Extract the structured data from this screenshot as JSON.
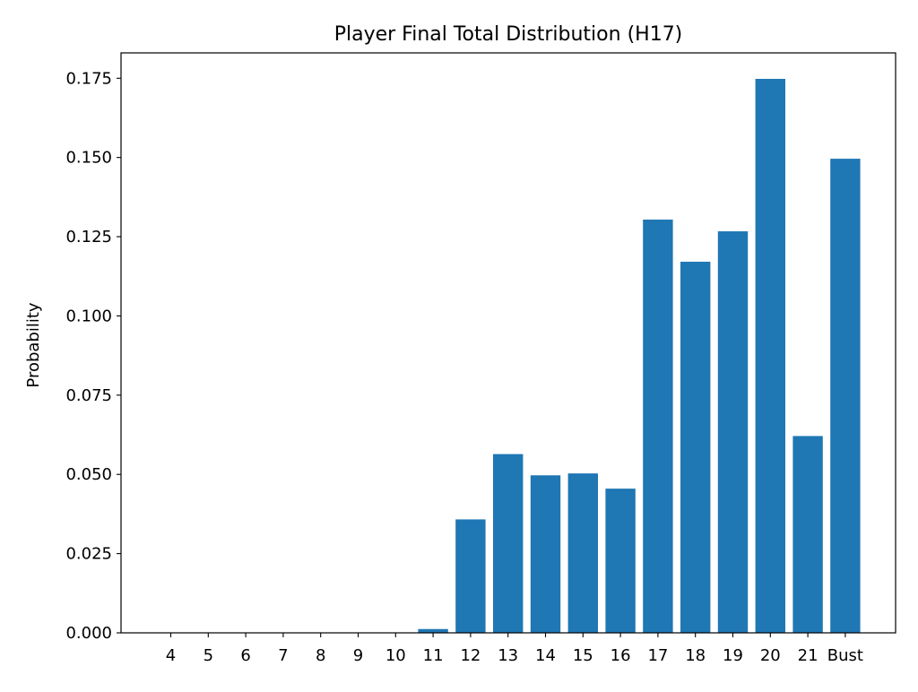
{
  "chart_data": {
    "type": "bar",
    "title": "Player Final Total Distribution (H17)",
    "xlabel": "",
    "ylabel": "Probability",
    "categories": [
      "4",
      "5",
      "6",
      "7",
      "8",
      "9",
      "10",
      "11",
      "12",
      "13",
      "14",
      "15",
      "16",
      "17",
      "18",
      "19",
      "20",
      "21",
      "Bust"
    ],
    "values": [
      0,
      0,
      0,
      0,
      0,
      0,
      0,
      0.0012,
      0.0358,
      0.0564,
      0.0497,
      0.0503,
      0.0455,
      0.1304,
      0.1171,
      0.1267,
      0.1748,
      0.0621,
      0.1496
    ],
    "ylim": [
      0,
      0.183
    ],
    "yticks": [
      "0.000",
      "0.025",
      "0.050",
      "0.075",
      "0.100",
      "0.125",
      "0.150",
      "0.175"
    ],
    "grid": false,
    "legend": "none",
    "bar_color": "#1f77b4"
  }
}
